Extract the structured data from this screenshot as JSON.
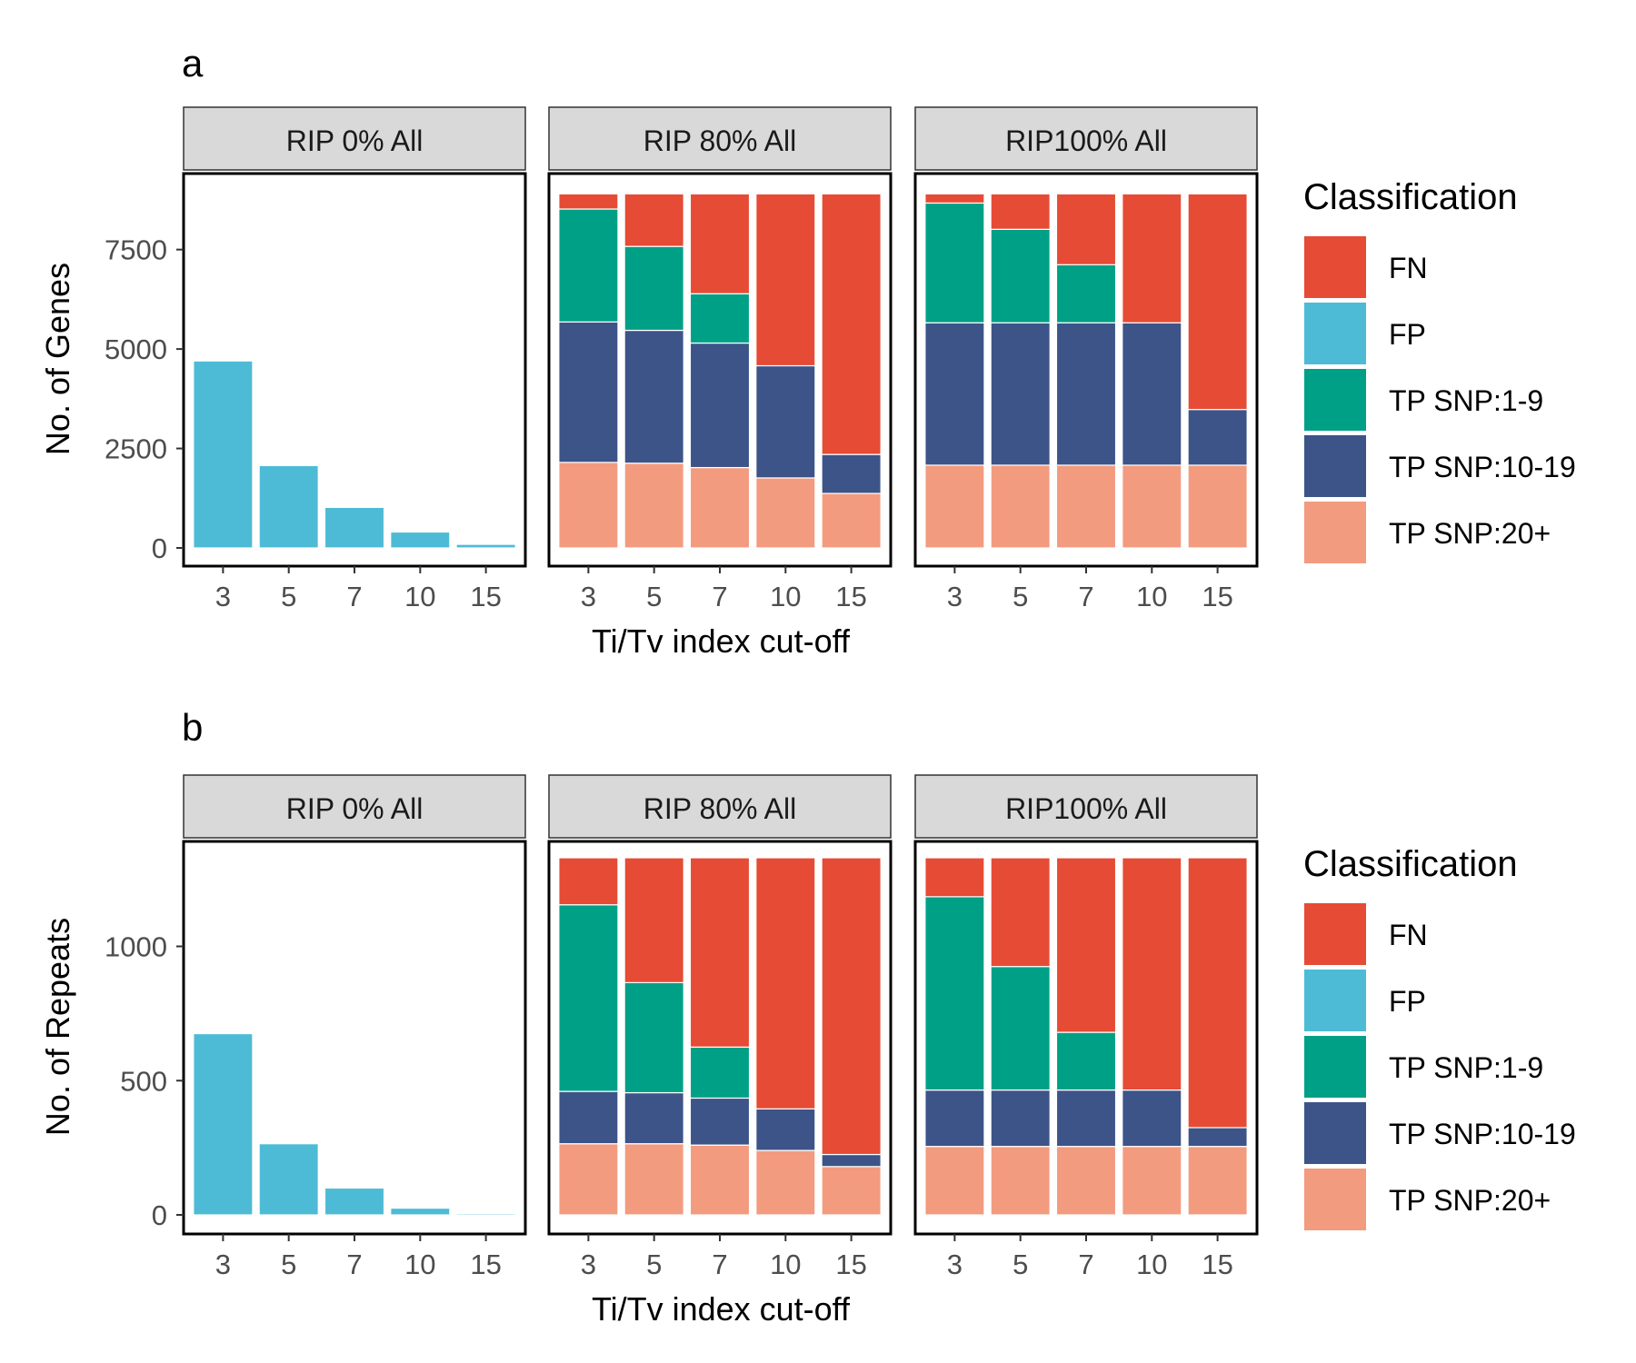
{
  "panels": [
    "RIP 0% All",
    "RIP 80% All",
    "RIP100% All"
  ],
  "legend_title": "Classification",
  "legend_items": [
    "FN",
    "FP",
    "TP SNP:1-9",
    "TP SNP:10-19",
    "TP SNP:20+"
  ],
  "colors": {
    "FN": "#e64b35",
    "FP": "#4dbbd5",
    "TP SNP:1-9": "#00a087",
    "TP SNP:10-19": "#3c5488",
    "TP SNP:20+": "#f39b7f",
    "strip_fill": "#d9d9d9",
    "tick_text": "#4d4d4d"
  },
  "chart_data": [
    {
      "type": "bar",
      "stacked": true,
      "panel_letter": "a",
      "ylabel": "No. of Genes",
      "xlabel": "Ti/Tv index cut-off",
      "categories": [
        "3",
        "5",
        "7",
        "10",
        "15"
      ],
      "ylim": [
        0,
        9000
      ],
      "yticks": [
        0,
        2500,
        5000,
        7500
      ],
      "legend": "right",
      "grid": false,
      "facets": [
        {
          "label": "RIP 0% All",
          "series": [
            {
              "name": "FP",
              "values": [
                4700,
                2070,
                1020,
                400,
                90
              ]
            }
          ]
        },
        {
          "label": "RIP 80% All",
          "series": [
            {
              "name": "TP SNP:20+",
              "values": [
                2150,
                2130,
                2020,
                1760,
                1370
              ]
            },
            {
              "name": "TP SNP:10-19",
              "values": [
                3530,
                3340,
                3130,
                2820,
                980
              ]
            },
            {
              "name": "TP SNP:1-9",
              "values": [
                2840,
                2110,
                1240,
                0,
                0
              ]
            },
            {
              "name": "FN",
              "values": [
                380,
                1320,
                2510,
                4320,
                6550
              ]
            }
          ]
        },
        {
          "label": "RIP100% All",
          "series": [
            {
              "name": "TP SNP:20+",
              "values": [
                2080,
                2080,
                2080,
                2080,
                2080
              ]
            },
            {
              "name": "TP SNP:10-19",
              "values": [
                3580,
                3580,
                3580,
                3580,
                1400
              ]
            },
            {
              "name": "TP SNP:1-9",
              "values": [
                3010,
                2350,
                1460,
                0,
                0
              ]
            },
            {
              "name": "FN",
              "values": [
                230,
                890,
                1780,
                3240,
                5420
              ]
            }
          ]
        }
      ]
    },
    {
      "type": "bar",
      "stacked": true,
      "panel_letter": "b",
      "ylabel": "No. of Repeats",
      "xlabel": "Ti/Tv index cut-off",
      "categories": [
        "3",
        "5",
        "7",
        "10",
        "15"
      ],
      "ylim": [
        0,
        1330
      ],
      "yticks": [
        0,
        500,
        1000
      ],
      "legend": "right",
      "grid": false,
      "facets": [
        {
          "label": "RIP 0% All",
          "series": [
            {
              "name": "FP",
              "values": [
                675,
                265,
                100,
                25,
                5
              ]
            }
          ]
        },
        {
          "label": "RIP 80% All",
          "series": [
            {
              "name": "TP SNP:20+",
              "values": [
                265,
                265,
                260,
                240,
                180
              ]
            },
            {
              "name": "TP SNP:10-19",
              "values": [
                195,
                190,
                175,
                155,
                45
              ]
            },
            {
              "name": "TP SNP:1-9",
              "values": [
                695,
                410,
                190,
                0,
                0
              ]
            },
            {
              "name": "FN",
              "values": [
                175,
                465,
                705,
                935,
                1105
              ]
            }
          ]
        },
        {
          "label": "RIP100% All",
          "series": [
            {
              "name": "TP SNP:20+",
              "values": [
                255,
                255,
                255,
                255,
                255
              ]
            },
            {
              "name": "TP SNP:10-19",
              "values": [
                210,
                210,
                210,
                210,
                70
              ]
            },
            {
              "name": "TP SNP:1-9",
              "values": [
                720,
                460,
                215,
                0,
                0
              ]
            },
            {
              "name": "FN",
              "values": [
                145,
                405,
                650,
                865,
                1005
              ]
            }
          ]
        }
      ]
    }
  ]
}
